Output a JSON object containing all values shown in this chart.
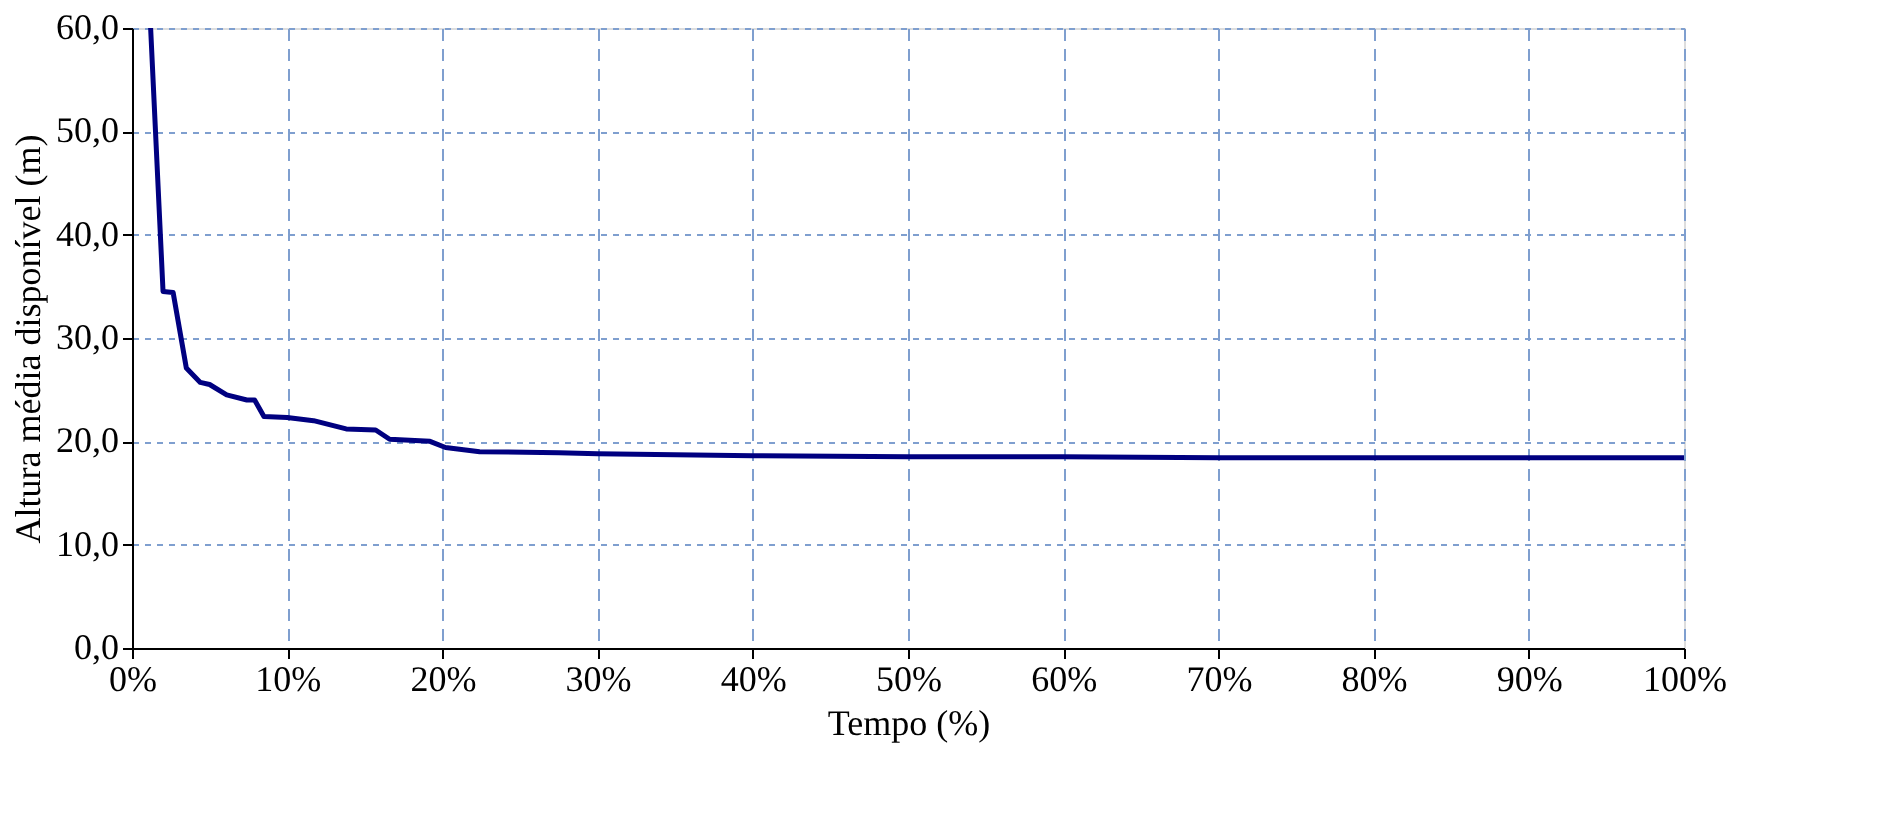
{
  "chart_data": {
    "type": "line",
    "xlabel": "Tempo (%)",
    "ylabel": "Altura média disponível (m)",
    "x": [
      1.2,
      2.0,
      2.65,
      3.5,
      4.4,
      5.0,
      6.1,
      7.4,
      7.9,
      8.5,
      10.0,
      11.7,
      13.8,
      15.7,
      16.6,
      19.2,
      20.2,
      22.4,
      27.5,
      30,
      40,
      50,
      60,
      70,
      80,
      90,
      100
    ],
    "series": [
      {
        "color": "#000080",
        "values": [
          60,
          34.5,
          34.4,
          27.1,
          25.7,
          25.5,
          24.5,
          24.0,
          24.0,
          22.4,
          22.3,
          22.0,
          21.2,
          21.1,
          20.2,
          20.0,
          19.4,
          19.0,
          18.9,
          18.8,
          18.6,
          18.5,
          18.5,
          18.4,
          18.4,
          18.4,
          18.4
        ]
      }
    ],
    "xlim": [
      0,
      100
    ],
    "ylim": [
      0,
      60
    ],
    "xticks": [
      {
        "value": 0,
        "label": "0%"
      },
      {
        "value": 10,
        "label": "10%"
      },
      {
        "value": 20,
        "label": "20%"
      },
      {
        "value": 30,
        "label": "30%"
      },
      {
        "value": 40,
        "label": "40%"
      },
      {
        "value": 50,
        "label": "50%"
      },
      {
        "value": 60,
        "label": "60%"
      },
      {
        "value": 70,
        "label": "70%"
      },
      {
        "value": 80,
        "label": "80%"
      },
      {
        "value": 90,
        "label": "90%"
      },
      {
        "value": 100,
        "label": "100%"
      }
    ],
    "yticks": [
      {
        "value": 0,
        "label": "0,0"
      },
      {
        "value": 10,
        "label": "10,0"
      },
      {
        "value": 20,
        "label": "20,0"
      },
      {
        "value": 30,
        "label": "30,0"
      },
      {
        "value": 40,
        "label": "40,0"
      },
      {
        "value": 50,
        "label": "50,0"
      },
      {
        "value": 60,
        "label": "60,0"
      }
    ],
    "grid": true,
    "line_style": "solid",
    "marker": "none",
    "legend": false
  }
}
